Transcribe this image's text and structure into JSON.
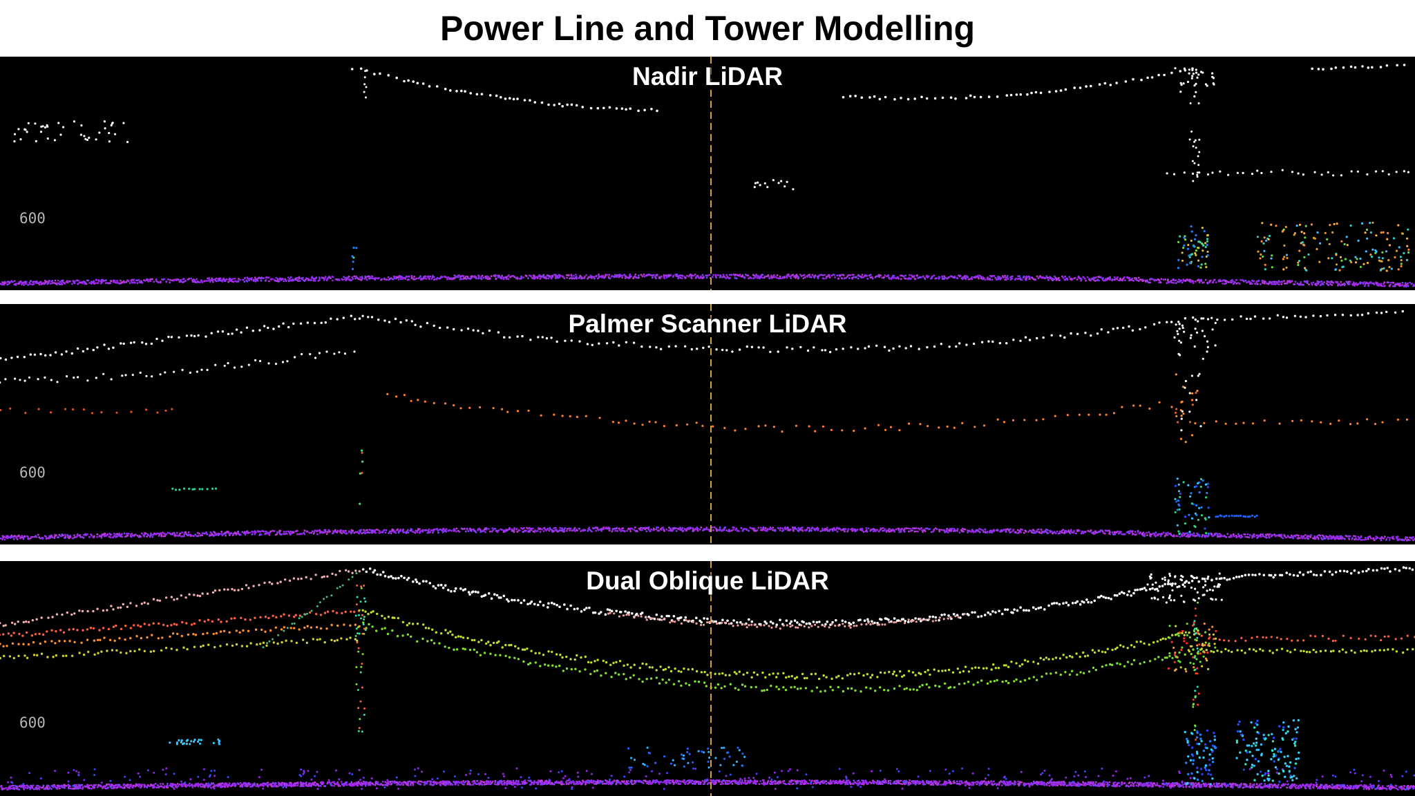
{
  "title": "Power Line and Tower Modelling",
  "panels": [
    {
      "id": "nadir",
      "title": "Nadir LiDAR",
      "axis_label": "600"
    },
    {
      "id": "palmer",
      "title": "Palmer Scanner LiDAR",
      "axis_label": "600"
    },
    {
      "id": "dual",
      "title": "Dual Oblique LiDAR",
      "axis_label": "600"
    }
  ],
  "colors": {
    "background": "#000000",
    "wire": "#ffffff",
    "ground": "#a020f0",
    "center_line": "#d9a040"
  }
}
